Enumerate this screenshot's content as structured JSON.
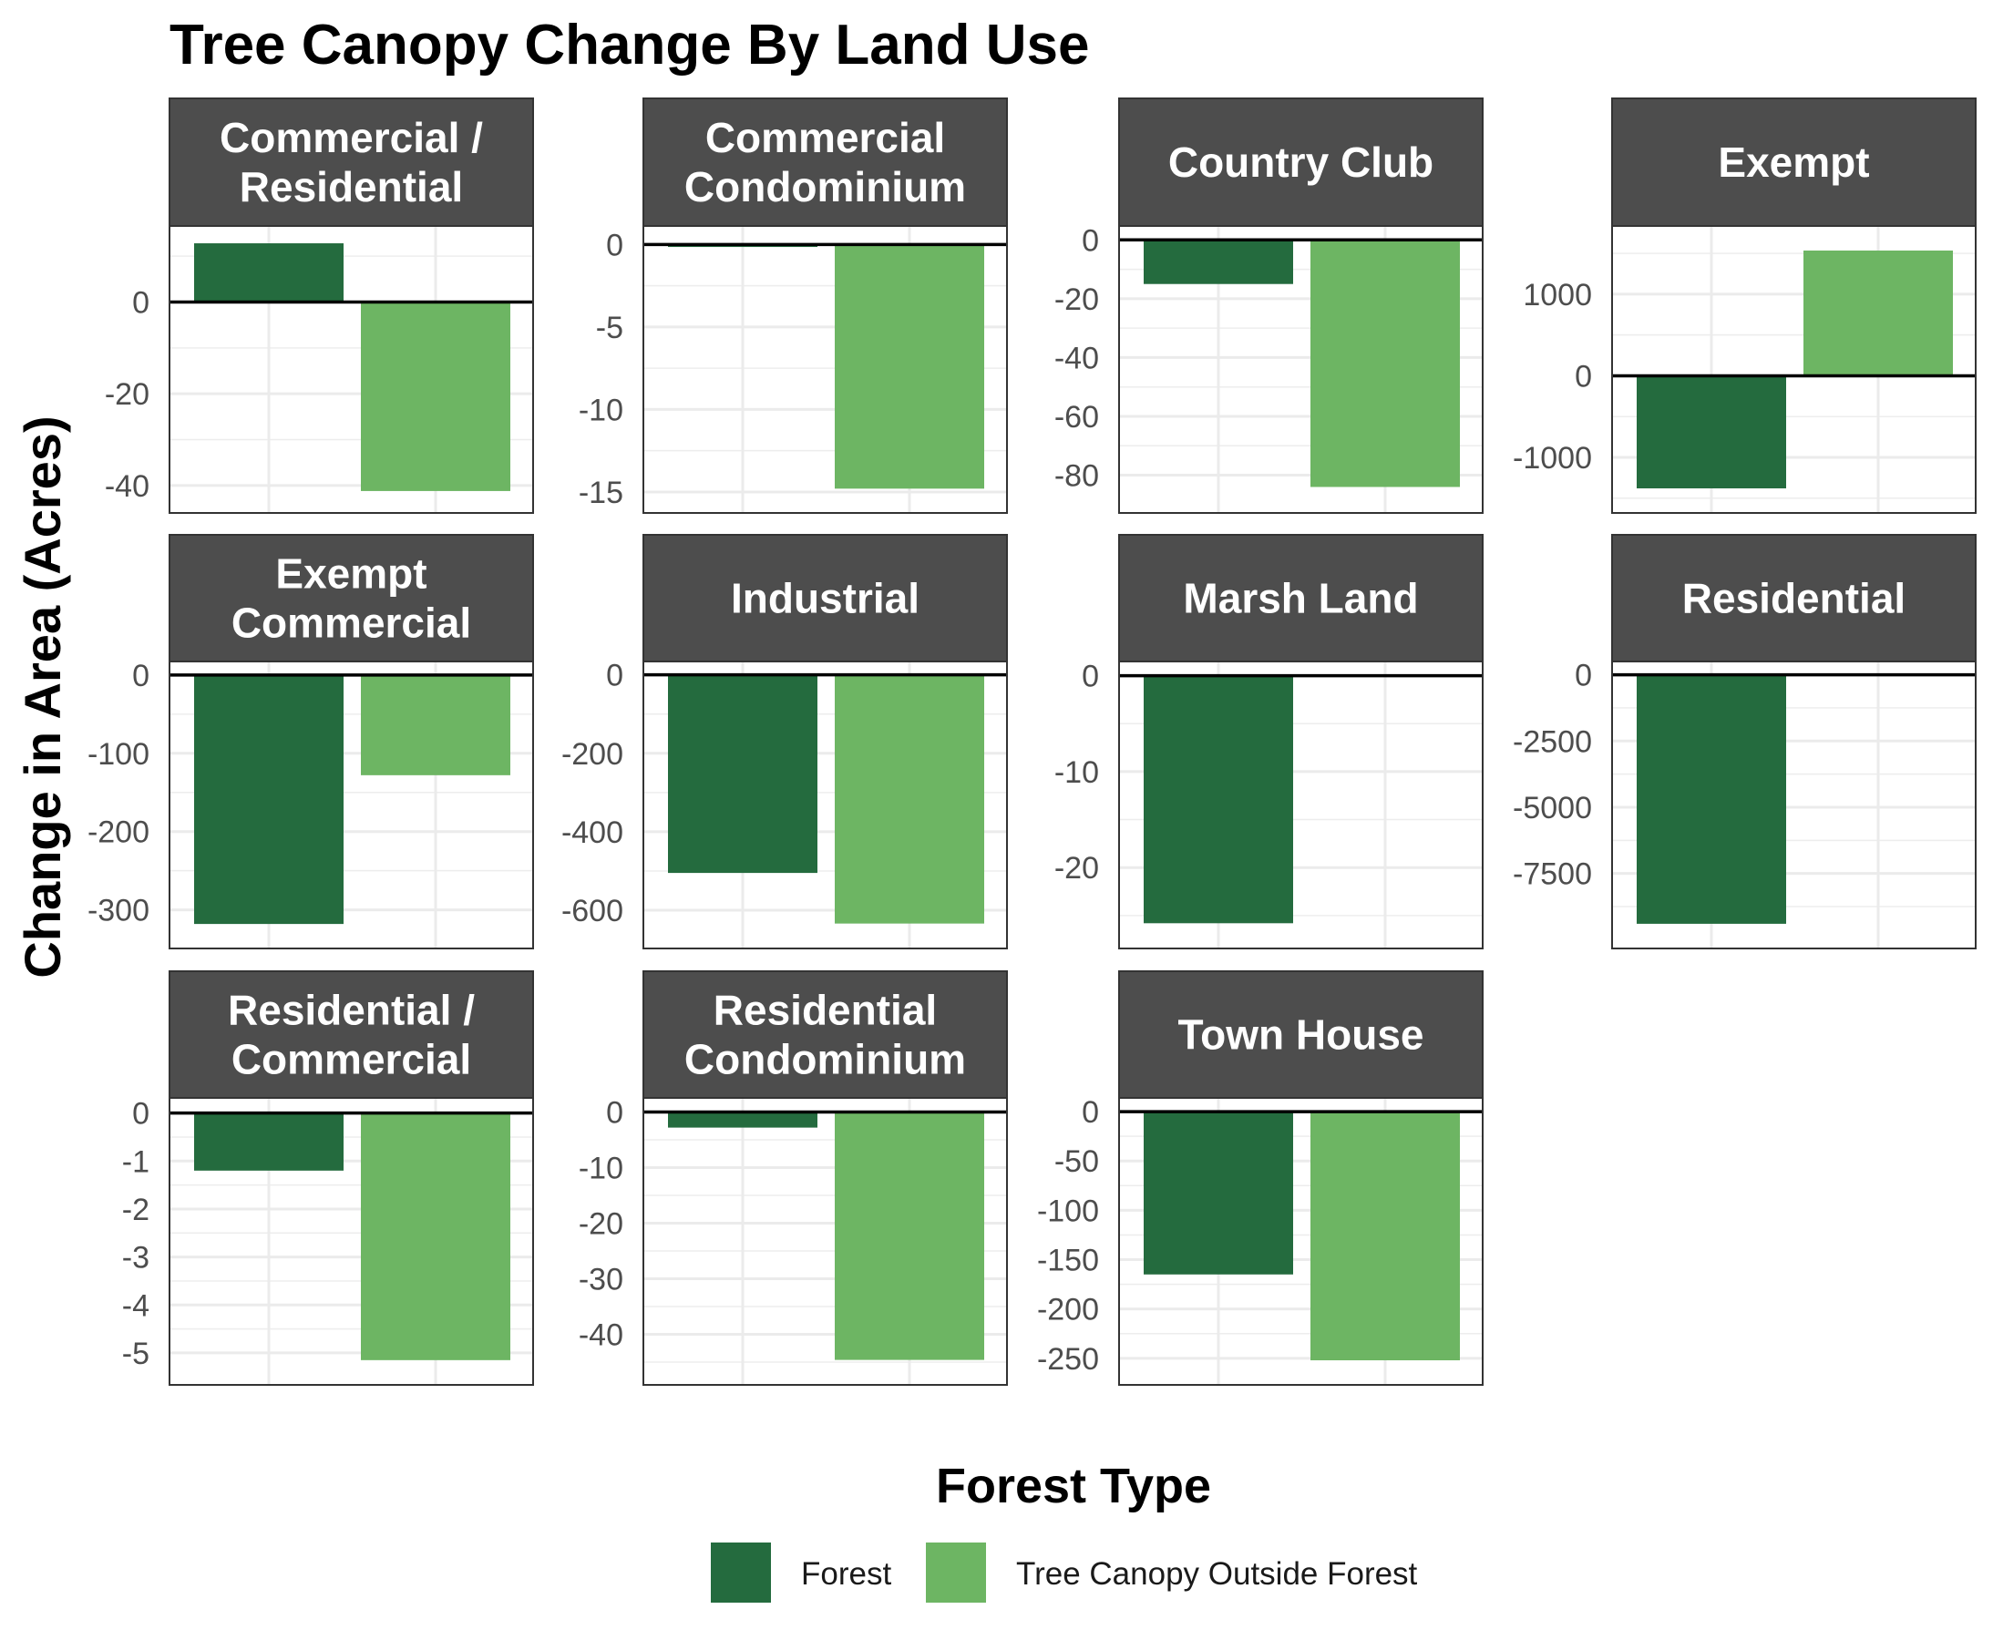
{
  "chart_data": {
    "type": "bar",
    "title": "Tree Canopy Change By Land Use",
    "ylabel": "Change in Area (Acres)",
    "legend": {
      "title": "Forest Type",
      "position": "bottom",
      "entries": [
        {
          "name": "Forest",
          "color": "#246b3e"
        },
        {
          "name": "Tree Canopy Outside Forest",
          "color": "#6db563"
        }
      ]
    },
    "categories": [
      "Forest",
      "Tree Canopy Outside Forest"
    ],
    "colors": {
      "Forest": "#246b3e",
      "Tree Canopy Outside Forest": "#6db563",
      "strip": "#4d4d4d",
      "grid": "#ebebeb",
      "zero_line": "#000000"
    },
    "grid": true,
    "facets": [
      {
        "label": [
          "Commercial /",
          "Residential"
        ],
        "values": [
          12.8,
          -41.2
        ],
        "ylim": [
          -43.2,
          13.8
        ],
        "ticks": [
          {
            "v": 0,
            "t": "0"
          },
          {
            "v": -20,
            "t": "-20"
          },
          {
            "v": -40,
            "t": "-40"
          }
        ]
      },
      {
        "label": [
          "Commercial",
          "Condominium"
        ],
        "values": [
          -0.15,
          -14.8
        ],
        "ylim": [
          -15.5,
          0.35
        ],
        "ticks": [
          {
            "v": 0,
            "t": "0"
          },
          {
            "v": -5,
            "t": "-5"
          },
          {
            "v": -10,
            "t": "-10"
          },
          {
            "v": -15,
            "t": "-15"
          }
        ]
      },
      {
        "label": [
          "Country Club"
        ],
        "values": [
          -15,
          -84
        ],
        "ylim": [
          -88.5,
          0.4
        ],
        "ticks": [
          {
            "v": 0,
            "t": "0"
          },
          {
            "v": -20,
            "t": "-20"
          },
          {
            "v": -40,
            "t": "-40"
          },
          {
            "v": -60,
            "t": "-60"
          },
          {
            "v": -80,
            "t": "-80"
          }
        ]
      },
      {
        "label": [
          "Exempt"
        ],
        "values": [
          -1380,
          1535
        ],
        "ylim": [
          -1525,
          1680
        ],
        "ticks": [
          {
            "v": 1000,
            "t": "1000"
          },
          {
            "v": 0,
            "t": "0"
          },
          {
            "v": -1000,
            "t": "-1000"
          }
        ]
      },
      {
        "label": [
          "Exempt",
          "Commercial"
        ],
        "values": [
          -318,
          -128
        ],
        "ylim": [
          -333,
          1
        ],
        "ticks": [
          {
            "v": 0,
            "t": "0"
          },
          {
            "v": -100,
            "t": "-100"
          },
          {
            "v": -200,
            "t": "-200"
          },
          {
            "v": -300,
            "t": "-300"
          }
        ]
      },
      {
        "label": [
          "Industrial"
        ],
        "values": [
          -505,
          -634
        ],
        "ylim": [
          -665,
          1.5
        ],
        "ticks": [
          {
            "v": 0,
            "t": "0"
          },
          {
            "v": -200,
            "t": "-200"
          },
          {
            "v": -400,
            "t": "-400"
          },
          {
            "v": -600,
            "t": "-600"
          }
        ]
      },
      {
        "label": [
          "Marsh Land"
        ],
        "values": [
          -25.8,
          0
        ],
        "ylim": [
          -27.1,
          0.15
        ],
        "ticks": [
          {
            "v": 0,
            "t": "0"
          },
          {
            "v": -10,
            "t": "-10"
          },
          {
            "v": -20,
            "t": "-20"
          }
        ]
      },
      {
        "label": [
          "Residential"
        ],
        "values": [
          -9400,
          0
        ],
        "ylim": [
          -9850,
          20
        ],
        "ticks": [
          {
            "v": 0,
            "t": "0"
          },
          {
            "v": -2500,
            "t": "-2500"
          },
          {
            "v": -5000,
            "t": "-5000"
          },
          {
            "v": -7500,
            "t": "-7500"
          }
        ]
      },
      {
        "label": [
          "Residential /",
          "Commercial"
        ],
        "values": [
          -1.2,
          -5.15
        ],
        "ylim": [
          -5.4,
          0.05
        ],
        "ticks": [
          {
            "v": 0,
            "t": "0"
          },
          {
            "v": -1,
            "t": "-1"
          },
          {
            "v": -2,
            "t": "-2"
          },
          {
            "v": -3,
            "t": "-3"
          },
          {
            "v": -4,
            "t": "-4"
          },
          {
            "v": -5,
            "t": "-5"
          }
        ]
      },
      {
        "label": [
          "Residential",
          "Condominium"
        ],
        "values": [
          -2.8,
          -44.6
        ],
        "ylim": [
          -46.8,
          0.25
        ],
        "ticks": [
          {
            "v": 0,
            "t": "0"
          },
          {
            "v": -10,
            "t": "-10"
          },
          {
            "v": -20,
            "t": "-20"
          },
          {
            "v": -30,
            "t": "-30"
          },
          {
            "v": -40,
            "t": "-40"
          }
        ]
      },
      {
        "label": [
          "Town House"
        ],
        "values": [
          -165,
          -252
        ],
        "ylim": [
          -264,
          1
        ],
        "ticks": [
          {
            "v": 0,
            "t": "0"
          },
          {
            "v": -50,
            "t": "-50"
          },
          {
            "v": -100,
            "t": "-100"
          },
          {
            "v": -150,
            "t": "-150"
          },
          {
            "v": -200,
            "t": "-200"
          },
          {
            "v": -250,
            "t": "-250"
          }
        ]
      }
    ]
  }
}
